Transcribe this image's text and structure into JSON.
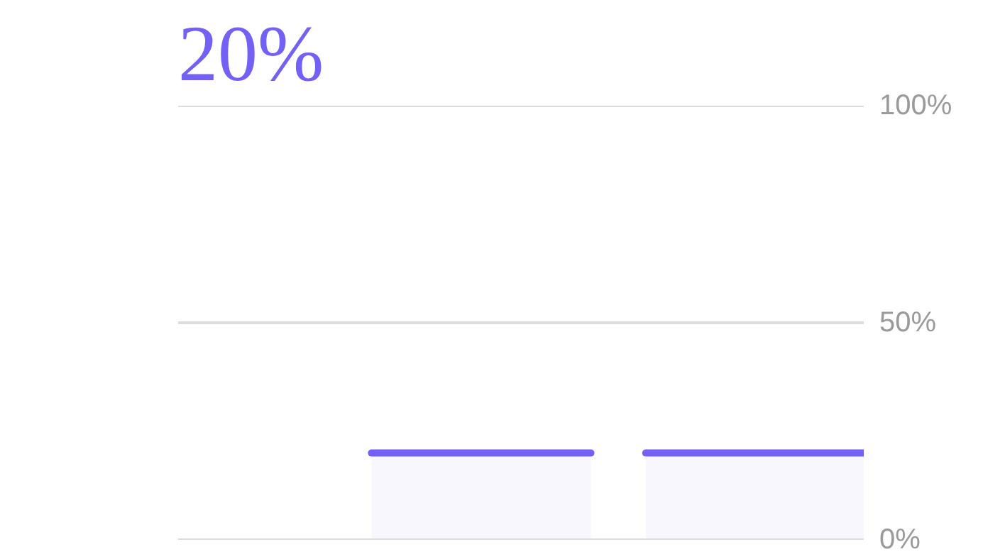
{
  "chart_data": {
    "type": "bar",
    "title": "20%",
    "categories": [
      null,
      null
    ],
    "values": [
      20,
      20
    ],
    "color": "#7360f5",
    "ylim": [
      0,
      100
    ],
    "yticks": [
      {
        "value": 0,
        "label": "0%"
      },
      {
        "value": 50,
        "label": "50%"
      },
      {
        "value": 100,
        "label": "100%"
      }
    ],
    "grid": "y",
    "tick_labels": "y"
  }
}
